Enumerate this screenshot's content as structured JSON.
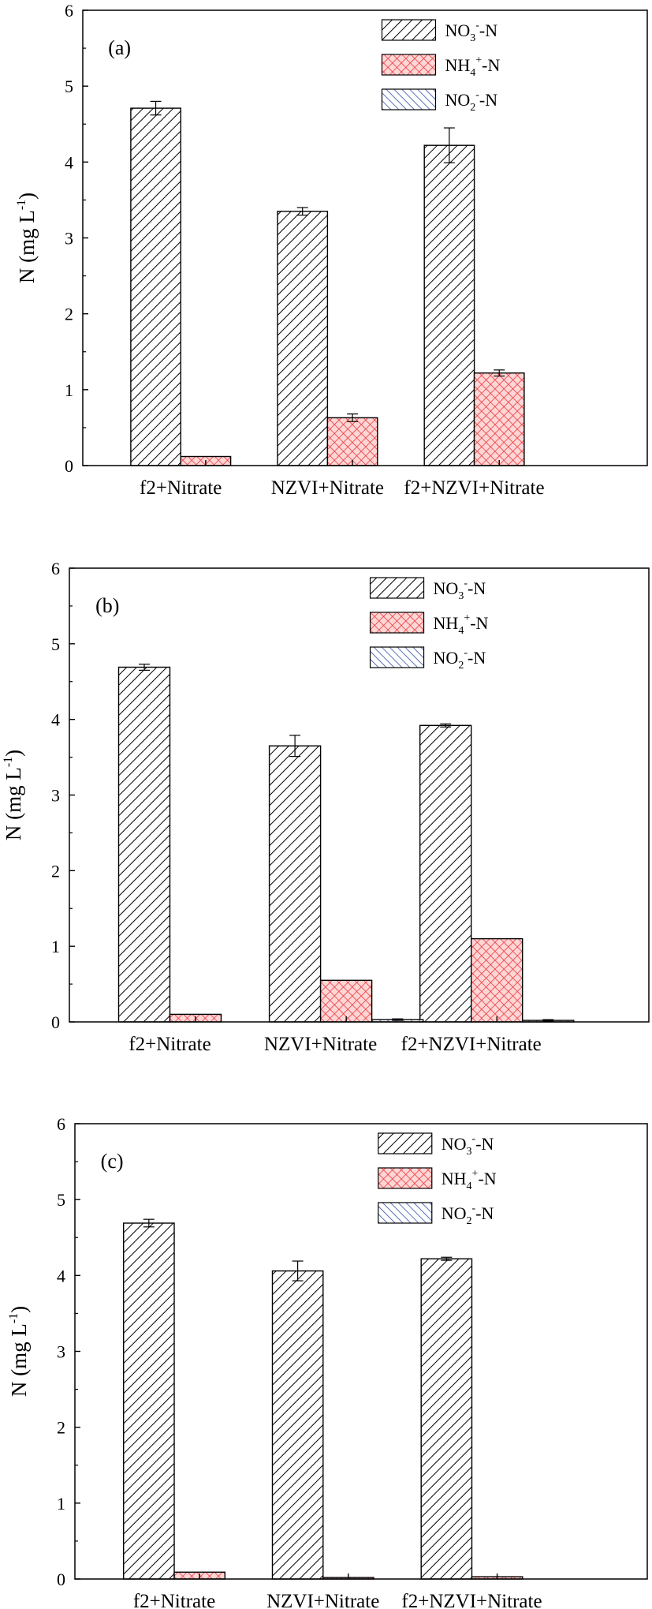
{
  "chart_data": [
    {
      "type": "bar",
      "panel_label": "(a)",
      "categories": [
        "f2+Nitrate",
        "NZVI+Nitrate",
        "f2+NZVI+Nitrate"
      ],
      "ylim": [
        0,
        6
      ],
      "yticks": [
        "0",
        "1",
        "2",
        "3",
        "4",
        "5",
        "6"
      ],
      "ylabel": "N (mg L",
      "ylabel_sup": "-1",
      "ylabel_end": ")",
      "legend_position": "top-right",
      "series": [
        {
          "name": "NO3- -N",
          "label_main": "NO",
          "label_sub": "3",
          "label_sup": "-",
          "label_end": "-N",
          "color": "#ffffff",
          "pattern": "hatch-diag",
          "values": [
            4.71,
            3.35,
            4.22
          ],
          "errors": [
            0.09,
            0.05,
            0.23
          ]
        },
        {
          "name": "NH4+ -N",
          "label_main": "NH",
          "label_sub": "4",
          "label_sup": "+",
          "label_end": "-N",
          "color": "#ff8c8c",
          "pattern": "crosshatch-red",
          "values": [
            0.12,
            0.63,
            1.22
          ],
          "errors": [
            0,
            0.05,
            0.04
          ]
        },
        {
          "name": "NO2- -N",
          "label_main": "NO",
          "label_sub": "2",
          "label_sup": "-",
          "label_end": "-N",
          "color": "#b7c6f0",
          "pattern": "hatch-blue",
          "values": [
            0,
            0,
            0
          ],
          "errors": [
            0,
            0,
            0
          ]
        }
      ]
    },
    {
      "type": "bar",
      "panel_label": "(b)",
      "categories": [
        "f2+Nitrate",
        "NZVI+Nitrate",
        "f2+NZVI+Nitrate"
      ],
      "ylim": [
        0,
        6
      ],
      "yticks": [
        "0",
        "1",
        "2",
        "3",
        "4",
        "5",
        "6"
      ],
      "ylabel": "N (mg L",
      "ylabel_sup": "-1",
      "ylabel_end": ")",
      "legend_position": "top-right",
      "series": [
        {
          "name": "NO3- -N",
          "label_main": "NO",
          "label_sub": "3",
          "label_sup": "-",
          "label_end": "-N",
          "color": "#ffffff",
          "pattern": "hatch-diag",
          "values": [
            4.69,
            3.65,
            3.92
          ],
          "errors": [
            0.04,
            0.14,
            0.02
          ]
        },
        {
          "name": "NH4+ -N",
          "label_main": "NH",
          "label_sub": "4",
          "label_sup": "+",
          "label_end": "-N",
          "color": "#ff8c8c",
          "pattern": "crosshatch-red",
          "values": [
            0.1,
            0.55,
            1.1
          ],
          "errors": [
            0,
            0,
            0
          ]
        },
        {
          "name": "NO2- -N",
          "label_main": "NO",
          "label_sub": "2",
          "label_sup": "-",
          "label_end": "-N",
          "color": "#b7c6f0",
          "pattern": "hatch-blue",
          "values": [
            0,
            0.03,
            0.02
          ],
          "errors": [
            0,
            0.01,
            0.01
          ]
        }
      ]
    },
    {
      "type": "bar",
      "panel_label": "(c)",
      "categories": [
        "f2+Nitrate",
        "NZVI+Nitrate",
        "f2+NZVI+Nitrate"
      ],
      "ylim": [
        0,
        6
      ],
      "yticks": [
        "0",
        "1",
        "2",
        "3",
        "4",
        "5",
        "6"
      ],
      "ylabel": "N (mg L",
      "ylabel_sup": "-1",
      "ylabel_end": ")",
      "legend_position": "top-right",
      "series": [
        {
          "name": "NO3- -N",
          "label_main": "NO",
          "label_sub": "3",
          "label_sup": "-",
          "label_end": "-N",
          "color": "#ffffff",
          "pattern": "hatch-diag",
          "values": [
            4.69,
            4.06,
            4.22
          ],
          "errors": [
            0.05,
            0.13,
            0.02
          ]
        },
        {
          "name": "NH4+ -N",
          "label_main": "NH",
          "label_sub": "4",
          "label_sup": "+",
          "label_end": "-N",
          "color": "#ff8c8c",
          "pattern": "crosshatch-red",
          "values": [
            0.09,
            0.02,
            0.03
          ],
          "errors": [
            0,
            0,
            0
          ]
        },
        {
          "name": "NO2- -N",
          "label_main": "NO",
          "label_sub": "2",
          "label_sup": "-",
          "label_end": "-N",
          "color": "#b7c6f0",
          "pattern": "hatch-blue",
          "values": [
            0,
            0,
            0
          ],
          "errors": [
            0,
            0,
            0
          ]
        }
      ]
    }
  ]
}
